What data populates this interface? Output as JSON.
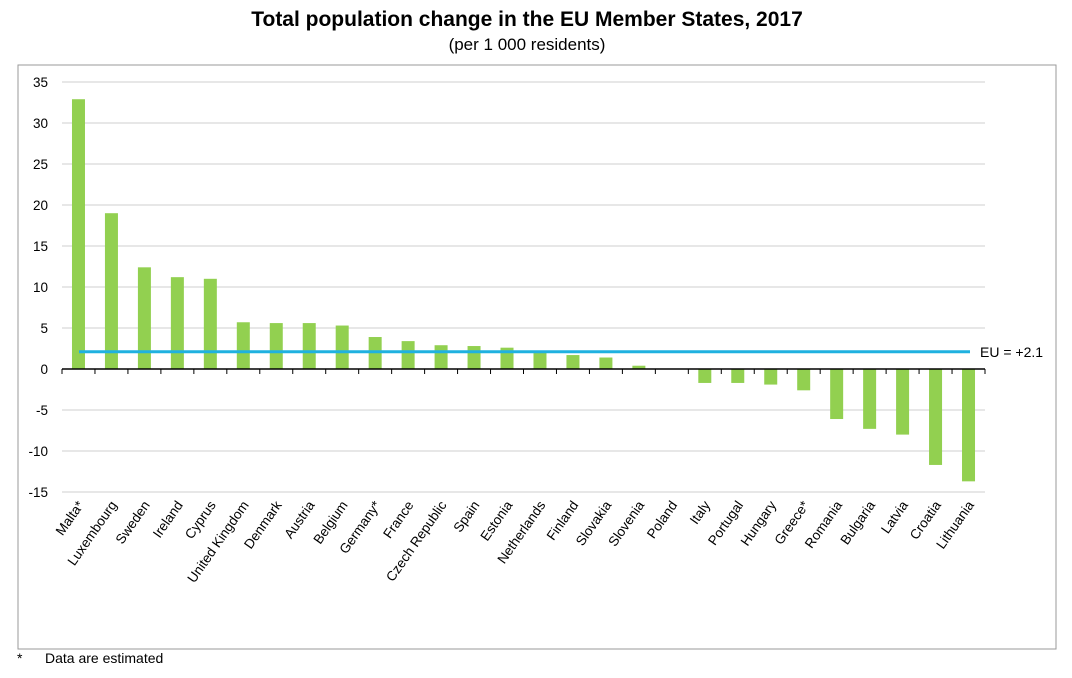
{
  "chart_data": {
    "type": "bar",
    "title": "Total population change in the EU Member States, 2017",
    "subtitle": "(per 1 000 residents)",
    "categories": [
      "Malta*",
      "Luxembourg",
      "Sweden",
      "Ireland",
      "Cyprus",
      "United Kingdom",
      "Denmark",
      "Austria",
      "Belgium",
      "Germany*",
      "France",
      "Czech Republic",
      "Spain",
      "Estonia",
      "Netherlands",
      "Finland",
      "Slovakia",
      "Slovenia",
      "Poland",
      "Italy",
      "Portugal",
      "Hungary",
      "Greece*",
      "Romania",
      "Bulgaria",
      "Latvia",
      "Croatia",
      "Lithuania"
    ],
    "values": [
      32.9,
      19.0,
      12.4,
      11.2,
      11.0,
      5.7,
      5.6,
      5.6,
      5.3,
      3.9,
      3.4,
      2.9,
      2.8,
      2.6,
      2.1,
      1.7,
      1.4,
      0.4,
      0.0,
      -1.7,
      -1.7,
      -1.9,
      -2.6,
      -6.1,
      -7.3,
      -8.0,
      -11.7,
      -13.7
    ],
    "ylim": [
      -15,
      35
    ],
    "yticks": [
      35,
      30,
      25,
      20,
      15,
      10,
      5,
      0,
      -5,
      -10,
      -15
    ],
    "reference_line": {
      "label": "EU = +2.1",
      "value": 2.1,
      "color": "#1fb1e0"
    },
    "bar_color": "#92d050",
    "grid": true,
    "xlabel": "",
    "ylabel": ""
  },
  "footnote": {
    "mark": "*",
    "text": "Data are estimated"
  }
}
